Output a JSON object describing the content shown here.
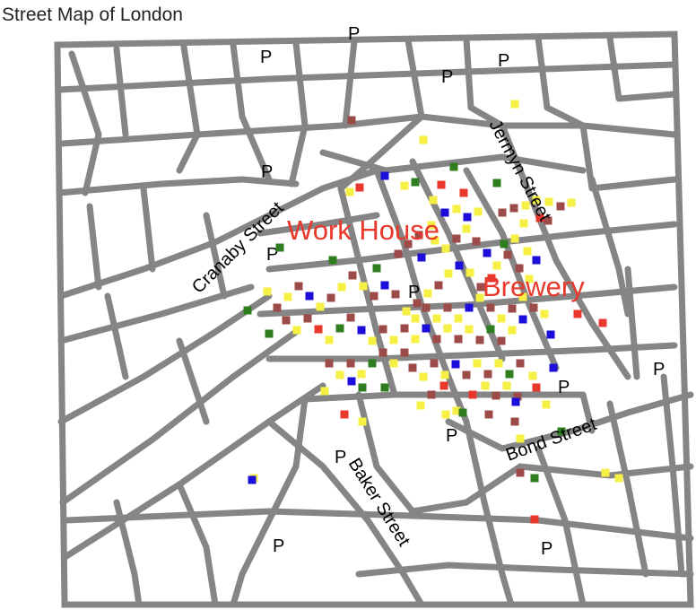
{
  "title": "Street Map of London",
  "streets": {
    "cranaby": "Cranaby Street",
    "jermyn": "Jermyn Street",
    "bond": "Bond Street",
    "baker": "Baker Street"
  },
  "landmarks": {
    "workhouse": "Work House",
    "brewery": "Brewery"
  },
  "pump_label": "P",
  "colors": {
    "street": "#858585",
    "landmark": "#e8372b",
    "cat_yellow": "#f5f043",
    "cat_brown": "#9c4b48",
    "cat_blue": "#1b0ddb",
    "cat_green": "#2f7d1e",
    "cat_red": "#e8372b"
  },
  "chart_data": {
    "type": "scatter",
    "title": "Street Map of London",
    "categories": [
      "yellow",
      "brown",
      "blue",
      "green",
      "red"
    ]
  }
}
